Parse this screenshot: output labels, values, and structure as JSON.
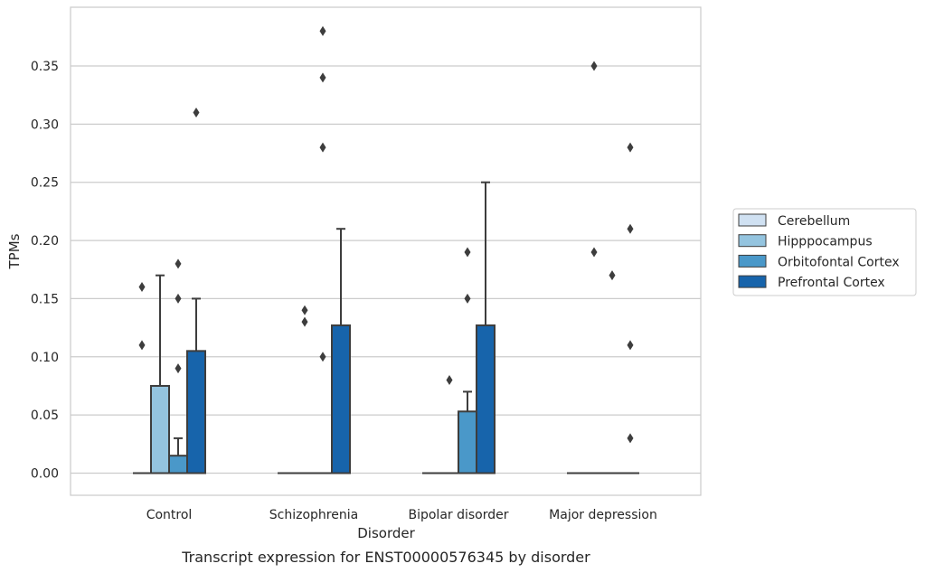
{
  "chart_data": {
    "type": "box",
    "title": "",
    "caption": "Transcript expression for ENST00000576345 by disorder",
    "xlabel": "Disorder",
    "ylabel": "TPMs",
    "ylim": [
      -0.018,
      0.398
    ],
    "yticks": [
      0.0,
      0.05,
      0.1,
      0.15,
      0.2,
      0.25,
      0.3,
      0.35
    ],
    "ytick_labels": [
      "0.00",
      "0.05",
      "0.10",
      "0.15",
      "0.20",
      "0.25",
      "0.30",
      "0.35"
    ],
    "grid": true,
    "legend_position": "right",
    "categories": [
      "Control",
      "Schizophrenia",
      "Bipolar disorder",
      "Major depression"
    ],
    "series": [
      {
        "name": "Cerebellum",
        "color": "#d0e1f2",
        "boxes": [
          {
            "q1": 0,
            "median": 0,
            "q3": 0,
            "whisker_low": 0,
            "whisker_high": 0,
            "outliers": [
              0.11,
              0.16
            ]
          },
          {
            "q1": 0,
            "median": 0,
            "q3": 0,
            "whisker_low": 0,
            "whisker_high": 0,
            "outliers": []
          },
          {
            "q1": 0,
            "median": 0,
            "q3": 0,
            "whisker_low": 0,
            "whisker_high": 0,
            "outliers": []
          },
          {
            "q1": 0,
            "median": 0,
            "q3": 0,
            "whisker_low": 0,
            "whisker_high": 0,
            "outliers": []
          }
        ]
      },
      {
        "name": "Hipppocampus",
        "color": "#94c4df",
        "boxes": [
          {
            "q1": 0,
            "median": 0,
            "q3": 0.075,
            "whisker_low": 0,
            "whisker_high": 0.17,
            "outliers": []
          },
          {
            "q1": 0,
            "median": 0,
            "q3": 0,
            "whisker_low": 0,
            "whisker_high": 0,
            "outliers": [
              0.13,
              0.14
            ]
          },
          {
            "q1": 0,
            "median": 0,
            "q3": 0,
            "whisker_low": 0,
            "whisker_high": 0,
            "outliers": [
              0.08
            ]
          },
          {
            "q1": 0,
            "median": 0,
            "q3": 0,
            "whisker_low": 0,
            "whisker_high": 0,
            "outliers": [
              0.19,
              0.35
            ]
          }
        ]
      },
      {
        "name": "Orbitofontal Cortex",
        "color": "#4a98c9",
        "boxes": [
          {
            "q1": 0,
            "median": 0,
            "q3": 0.015,
            "whisker_low": 0,
            "whisker_high": 0.03,
            "outliers": [
              0.09,
              0.15,
              0.18
            ]
          },
          {
            "q1": 0,
            "median": 0,
            "q3": 0,
            "whisker_low": 0,
            "whisker_high": 0,
            "outliers": [
              0.1,
              0.28,
              0.34,
              0.38
            ]
          },
          {
            "q1": 0,
            "median": 0,
            "q3": 0.053,
            "whisker_low": 0,
            "whisker_high": 0.07,
            "outliers": [
              0.15,
              0.19
            ]
          },
          {
            "q1": 0,
            "median": 0,
            "q3": 0,
            "whisker_low": 0,
            "whisker_high": 0,
            "outliers": [
              0.17
            ]
          }
        ]
      },
      {
        "name": "Prefrontal Cortex",
        "color": "#1764ab",
        "boxes": [
          {
            "q1": 0,
            "median": 0,
            "q3": 0.105,
            "whisker_low": 0,
            "whisker_high": 0.15,
            "outliers": [
              0.31
            ]
          },
          {
            "q1": 0,
            "median": 0,
            "q3": 0.127,
            "whisker_low": 0,
            "whisker_high": 0.21,
            "outliers": []
          },
          {
            "q1": 0,
            "median": 0,
            "q3": 0.127,
            "whisker_low": 0,
            "whisker_high": 0.25,
            "outliers": []
          },
          {
            "q1": 0,
            "median": 0,
            "q3": 0,
            "whisker_low": 0,
            "whisker_high": 0,
            "outliers": [
              0.03,
              0.11,
              0.21,
              0.28
            ]
          }
        ]
      }
    ]
  }
}
